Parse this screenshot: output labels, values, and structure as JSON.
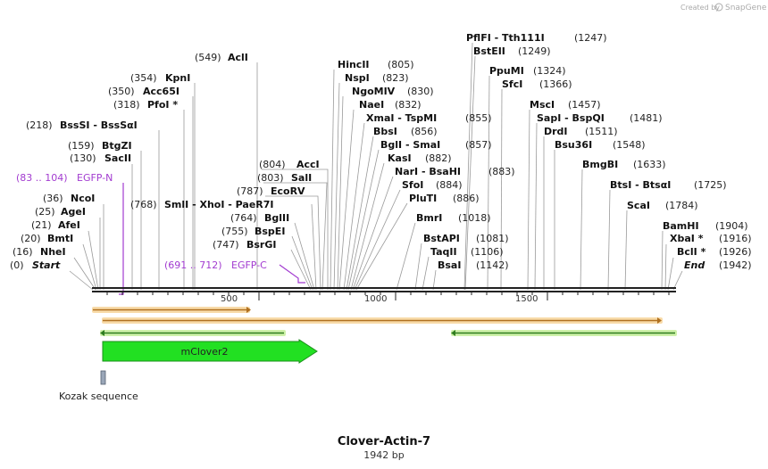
{
  "header": {
    "credit_prefix": "Created by",
    "credit_brand": "SnapGene"
  },
  "map": {
    "title": "Clover-Actin-7",
    "length_label": "1942 bp",
    "ruler_ticks": [
      "500",
      "1000",
      "1500"
    ]
  },
  "enzymes": [
    {
      "pos_label": "(549)",
      "name": "AclI"
    },
    {
      "pos_label": "(354)",
      "name": "KpnI"
    },
    {
      "pos_label": "(350)",
      "name": "Acc65I"
    },
    {
      "pos_label": "(318)",
      "name": "PfoI *"
    },
    {
      "pos_label": "(218)",
      "name": "BssSI  -  BssSαI"
    },
    {
      "pos_label": "(159)",
      "name": "BtgZI"
    },
    {
      "pos_label": "(130)",
      "name": "SacII"
    },
    {
      "pos_label": "(768)",
      "name": "SmlI  -  XhoI  -  PaeR7I"
    },
    {
      "pos_label": "(36)",
      "name": "NcoI"
    },
    {
      "pos_label": "(25)",
      "name": "AgeI"
    },
    {
      "pos_label": "(21)",
      "name": "AfeI"
    },
    {
      "pos_label": "(20)",
      "name": "BmtI"
    },
    {
      "pos_label": "(16)",
      "name": "NheI"
    },
    {
      "pos_label": "(0)",
      "name": "Start"
    },
    {
      "pos_label": "(804)",
      "name": "AccI"
    },
    {
      "pos_label": "(803)",
      "name": "SalI"
    },
    {
      "pos_label": "(787)",
      "name": "EcoRV"
    },
    {
      "pos_label": "(764)",
      "name": "BglII"
    },
    {
      "pos_label": "(755)",
      "name": "BspEI"
    },
    {
      "pos_label": "(747)",
      "name": "BsrGI"
    },
    {
      "pos_label": "(805)",
      "name": "HincII"
    },
    {
      "pos_label": "(823)",
      "name": "NspI"
    },
    {
      "pos_label": "(830)",
      "name": "NgoMIV"
    },
    {
      "pos_label": "(832)",
      "name": "NaeI"
    },
    {
      "pos_label": "(855)",
      "name": "XmaI  -  TspMI"
    },
    {
      "pos_label": "(856)",
      "name": "BbsI"
    },
    {
      "pos_label": "(857)",
      "name": "BglI  -  SmaI"
    },
    {
      "pos_label": "(882)",
      "name": "KasI"
    },
    {
      "pos_label": "(883)",
      "name": "NarI  -  BsaHI"
    },
    {
      "pos_label": "(884)",
      "name": "SfoI"
    },
    {
      "pos_label": "(886)",
      "name": "PluTI"
    },
    {
      "pos_label": "(1018)",
      "name": "BmrI"
    },
    {
      "pos_label": "(1081)",
      "name": "BstAPI"
    },
    {
      "pos_label": "(1106)",
      "name": "TaqII"
    },
    {
      "pos_label": "(1142)",
      "name": "BsaI"
    },
    {
      "pos_label": "(1247)",
      "name": "PflFI  -  Tth111I"
    },
    {
      "pos_label": "(1249)",
      "name": "BstEII"
    },
    {
      "pos_label": "(1324)",
      "name": "PpuMI"
    },
    {
      "pos_label": "(1366)",
      "name": "SfcI"
    },
    {
      "pos_label": "(1457)",
      "name": "MscI"
    },
    {
      "pos_label": "(1481)",
      "name": "SapI  -  BspQI"
    },
    {
      "pos_label": "(1511)",
      "name": "DrdI"
    },
    {
      "pos_label": "(1548)",
      "name": "Bsu36I"
    },
    {
      "pos_label": "(1633)",
      "name": "BmgBI"
    },
    {
      "pos_label": "(1725)",
      "name": "BtsI  -  BtsαI"
    },
    {
      "pos_label": "(1784)",
      "name": "ScaI"
    },
    {
      "pos_label": "(1904)",
      "name": "BamHI"
    },
    {
      "pos_label": "(1916)",
      "name": "XbaI *"
    },
    {
      "pos_label": "(1926)",
      "name": "BclI *"
    },
    {
      "pos_label": "(1942)",
      "name": "End"
    }
  ],
  "primers": [
    {
      "range": "(83 .. 104)",
      "name": "EGFP-N"
    },
    {
      "range": "(691 .. 712)",
      "name": "EGFP-C"
    }
  ],
  "features": {
    "cds_label": "mClover2",
    "kozak_label": "Kozak sequence"
  },
  "colors": {
    "primer": "#a23bd0",
    "orange_arrow": "#f0a020",
    "green_arrow": "#a6e06a",
    "cds_fill": "#22e022",
    "kozak_fill": "#9aa6b8"
  }
}
